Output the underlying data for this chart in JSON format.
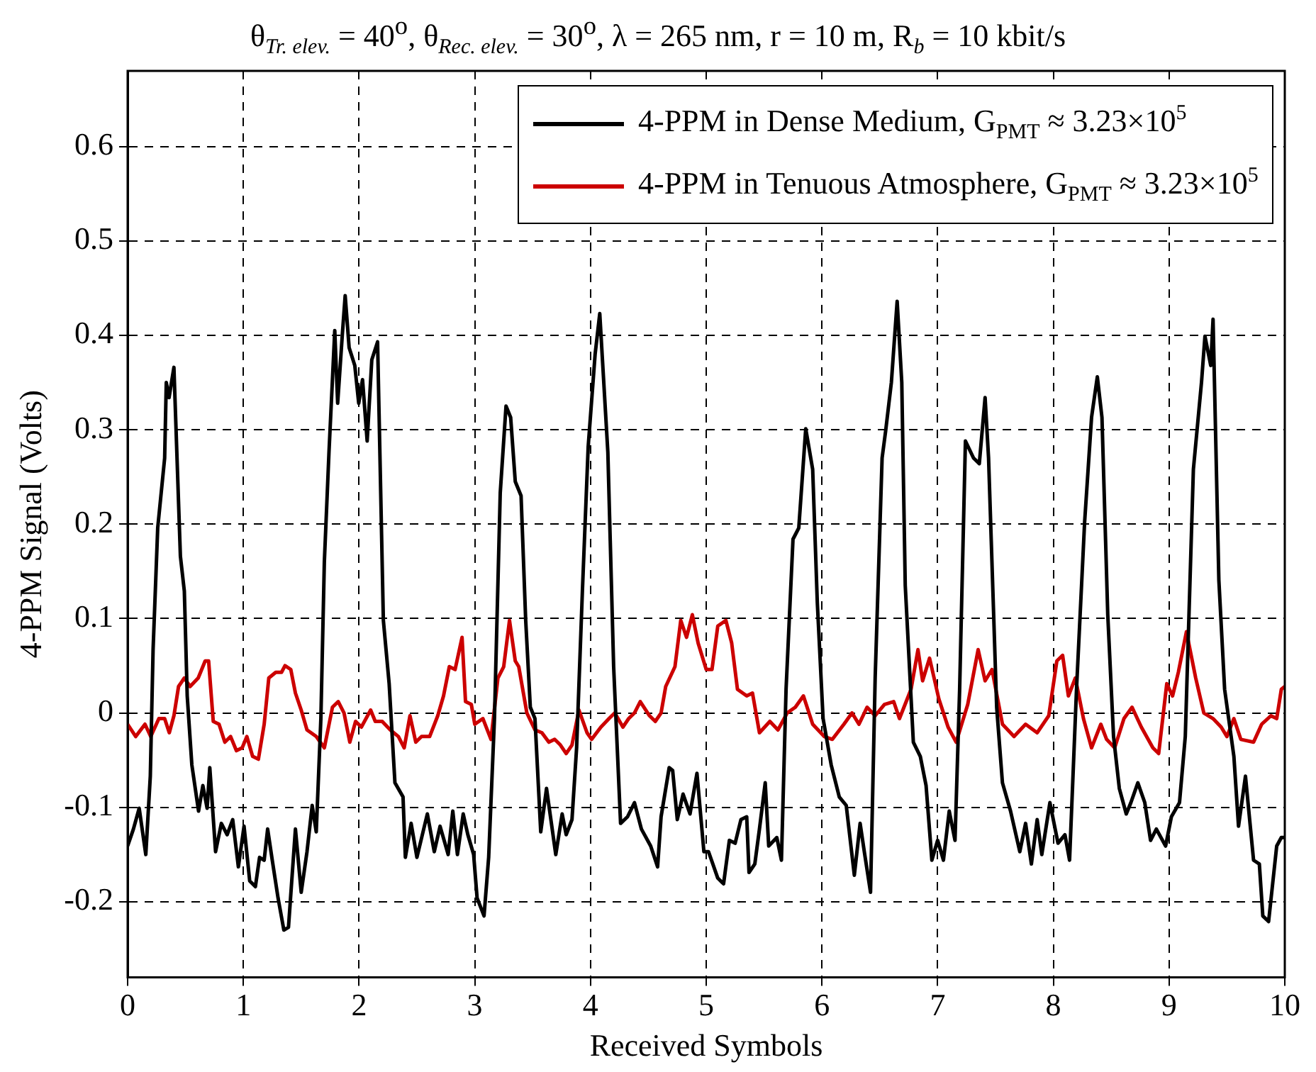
{
  "chart_data": {
    "type": "line",
    "title": "θ$_{Tr. elev.}$ = 40$^{o}$, θ$_{Rec. elev.}$ = 30$^{o}$, λ = 265 nm, r = 10 m, R$_{b}$ = 10 kbit/s",
    "xlabel": "Received Symbols",
    "ylabel": "4-PPM Signal (Volts)",
    "xlim": [
      0,
      10
    ],
    "xticks": [
      0,
      1,
      2,
      3,
      4,
      5,
      6,
      7,
      8,
      9,
      10
    ],
    "ylim": [
      -0.28,
      0.68
    ],
    "yticks": [
      -0.2,
      -0.1,
      0,
      0.1,
      0.2,
      0.3,
      0.4,
      0.5,
      0.6
    ],
    "grid": true,
    "legend": "top right",
    "marker": "none",
    "line_style": "solid",
    "series": [
      {
        "name": "4-PPM in Dense Medium, G$_{PMT}$ ≈ 3.23×10$^{5}$",
        "color": "#000000",
        "x": [
          0,
          0.05,
          0.1,
          0.157,
          0.196,
          0.22,
          0.26,
          0.32,
          0.334,
          0.358,
          0.4,
          0.456,
          0.49,
          0.515,
          0.555,
          0.613,
          0.65,
          0.687,
          0.71,
          0.76,
          0.81,
          0.86,
          0.908,
          0.957,
          1.006,
          1.055,
          1.104,
          1.14,
          1.18,
          1.21,
          1.25,
          1.3,
          1.35,
          1.39,
          1.45,
          1.5,
          1.55,
          1.595,
          1.63,
          1.67,
          1.7,
          1.74,
          1.79,
          1.815,
          1.855,
          1.88,
          1.914,
          1.963,
          1.997,
          2.03,
          2.07,
          2.11,
          2.16,
          2.21,
          2.26,
          2.31,
          2.38,
          2.4,
          2.45,
          2.5,
          2.59,
          2.65,
          2.7,
          2.77,
          2.81,
          2.85,
          2.9,
          2.94,
          2.99,
          3.02,
          3.08,
          3.12,
          3.17,
          3.22,
          3.27,
          3.31,
          3.35,
          3.4,
          3.44,
          3.48,
          3.52,
          3.57,
          3.62,
          3.7,
          3.755,
          3.79,
          3.84,
          3.88,
          3.93,
          3.98,
          4.04,
          4.08,
          4.15,
          4.2,
          4.26,
          4.32,
          4.38,
          4.44,
          4.52,
          4.58,
          4.61,
          4.68,
          4.71,
          4.75,
          4.8,
          4.86,
          4.92,
          4.98,
          5.02,
          5.1,
          5.15,
          5.2,
          5.25,
          5.3,
          5.35,
          5.37,
          5.42,
          5.46,
          5.51,
          5.54,
          5.61,
          5.65,
          5.69,
          5.75,
          5.8,
          5.86,
          5.92,
          5.96,
          6.01,
          6.08,
          6.15,
          6.21,
          6.28,
          6.33,
          6.37,
          6.42,
          6.46,
          6.52,
          6.55,
          6.6,
          6.65,
          6.69,
          6.72,
          6.79,
          6.85,
          6.9,
          6.95,
          7,
          7.05,
          7.1,
          7.15,
          7.19,
          7.24,
          7.31,
          7.36,
          7.41,
          7.44,
          7.51,
          7.56,
          7.63,
          7.71,
          7.76,
          7.81,
          7.86,
          7.9,
          7.97,
          8.04,
          8.1,
          8.14,
          8.2,
          8.27,
          8.33,
          8.38,
          8.42,
          8.47,
          8.52,
          8.57,
          8.63,
          8.67,
          8.73,
          8.79,
          8.84,
          8.89,
          8.97,
          9.02,
          9.09,
          9.14,
          9.21,
          9.28,
          9.31,
          9.36,
          9.38,
          9.43,
          9.48,
          9.56,
          9.6,
          9.66,
          9.73,
          9.78,
          9.81,
          9.86,
          9.93,
          9.97,
          10
        ],
        "values": [
          -0.141,
          -0.123,
          -0.101,
          -0.15,
          -0.067,
          0.067,
          0.196,
          0.27,
          0.35,
          0.334,
          0.366,
          0.166,
          0.129,
          0.018,
          -0.055,
          -0.104,
          -0.077,
          -0.101,
          -0.058,
          -0.147,
          -0.117,
          -0.129,
          -0.113,
          -0.163,
          -0.12,
          -0.178,
          -0.184,
          -0.153,
          -0.156,
          -0.123,
          -0.156,
          -0.196,
          -0.23,
          -0.227,
          -0.123,
          -0.19,
          -0.147,
          -0.098,
          -0.126,
          -0.006,
          0.16,
          0.276,
          0.405,
          0.328,
          0.4,
          0.442,
          0.387,
          0.368,
          0.328,
          0.353,
          0.288,
          0.374,
          0.393,
          0.098,
          0.031,
          -0.074,
          -0.089,
          -0.153,
          -0.117,
          -0.153,
          -0.107,
          -0.147,
          -0.12,
          -0.15,
          -0.104,
          -0.15,
          -0.107,
          -0.129,
          -0.15,
          -0.196,
          -0.215,
          -0.153,
          -0.006,
          0.233,
          0.325,
          0.313,
          0.245,
          0.23,
          0.098,
          0.006,
          -0.006,
          -0.126,
          -0.08,
          -0.15,
          -0.107,
          -0.129,
          -0.113,
          -0.037,
          0.129,
          0.282,
          0.38,
          0.423,
          0.276,
          0.049,
          -0.117,
          -0.11,
          -0.095,
          -0.123,
          -0.141,
          -0.163,
          -0.11,
          -0.058,
          -0.061,
          -0.113,
          -0.086,
          -0.107,
          -0.064,
          -0.147,
          -0.147,
          -0.175,
          -0.181,
          -0.135,
          -0.138,
          -0.113,
          -0.11,
          -0.169,
          -0.16,
          -0.123,
          -0.074,
          -0.141,
          -0.132,
          -0.156,
          0.025,
          0.184,
          0.196,
          0.301,
          0.258,
          0.117,
          -0.006,
          -0.055,
          -0.089,
          -0.098,
          -0.172,
          -0.117,
          -0.15,
          -0.19,
          0.037,
          0.27,
          0.298,
          0.35,
          0.436,
          0.35,
          0.135,
          -0.031,
          -0.046,
          -0.077,
          -0.156,
          -0.135,
          -0.156,
          -0.104,
          -0.135,
          0.025,
          0.288,
          0.27,
          0.264,
          0.334,
          0.27,
          0.006,
          -0.074,
          -0.104,
          -0.147,
          -0.117,
          -0.16,
          -0.113,
          -0.15,
          -0.095,
          -0.138,
          -0.129,
          -0.156,
          0.025,
          0.202,
          0.313,
          0.356,
          0.313,
          0.104,
          -0.025,
          -0.08,
          -0.107,
          -0.095,
          -0.074,
          -0.095,
          -0.135,
          -0.123,
          -0.141,
          -0.11,
          -0.095,
          -0.025,
          0.258,
          0.35,
          0.399,
          0.368,
          0.417,
          0.141,
          0.025,
          -0.046,
          -0.12,
          -0.067,
          -0.156,
          -0.16,
          -0.215,
          -0.221,
          -0.141,
          -0.132,
          -0.132
        ]
      },
      {
        "name": "4-PPM in Tenuous Atmosphere, G$_{PMT}$ ≈ 3.23×10$^{5}$",
        "color": "#cc0000",
        "x": [
          0,
          0.07,
          0.15,
          0.2,
          0.27,
          0.32,
          0.36,
          0.4,
          0.44,
          0.49,
          0.54,
          0.61,
          0.67,
          0.7,
          0.74,
          0.79,
          0.84,
          0.89,
          0.94,
          0.99,
          1.03,
          1.08,
          1.13,
          1.18,
          1.22,
          1.28,
          1.33,
          1.36,
          1.41,
          1.45,
          1.5,
          1.55,
          1.63,
          1.7,
          1.77,
          1.82,
          1.87,
          1.92,
          1.97,
          2.02,
          2.1,
          2.14,
          2.2,
          2.27,
          2.34,
          2.39,
          2.44,
          2.49,
          2.54,
          2.61,
          2.68,
          2.73,
          2.78,
          2.83,
          2.89,
          2.92,
          2.97,
          3,
          3.07,
          3.14,
          3.2,
          3.25,
          3.3,
          3.35,
          3.38,
          3.45,
          3.52,
          3.58,
          3.64,
          3.69,
          3.74,
          3.79,
          3.84,
          3.9,
          3.97,
          4.01,
          4.09,
          4.16,
          4.21,
          4.28,
          4.33,
          4.38,
          4.43,
          4.51,
          4.56,
          4.61,
          4.65,
          4.73,
          4.78,
          4.83,
          4.88,
          4.93,
          5,
          5.05,
          5.1,
          5.17,
          5.22,
          5.27,
          5.35,
          5.4,
          5.46,
          5.55,
          5.62,
          5.7,
          5.77,
          5.84,
          5.92,
          6.02,
          6.09,
          6.19,
          6.26,
          6.32,
          6.39,
          6.46,
          6.54,
          6.62,
          6.67,
          6.77,
          6.83,
          6.87,
          6.93,
          7.01,
          7.09,
          7.16,
          7.26,
          7.35,
          7.41,
          7.47,
          7.56,
          7.66,
          7.76,
          7.86,
          7.96,
          8.03,
          8.08,
          8.13,
          8.19,
          8.26,
          8.33,
          8.41,
          8.46,
          8.53,
          8.61,
          8.68,
          8.76,
          8.86,
          8.91,
          8.98,
          9.03,
          9.08,
          9.15,
          9.23,
          9.3,
          9.38,
          9.45,
          9.5,
          9.56,
          9.62,
          9.73,
          9.8,
          9.88,
          9.93,
          9.97,
          10
        ],
        "values": [
          -0.012,
          -0.025,
          -0.012,
          -0.025,
          -0.006,
          -0.006,
          -0.021,
          -0.003,
          0.028,
          0.037,
          0.028,
          0.037,
          0.055,
          0.055,
          -0.009,
          -0.012,
          -0.031,
          -0.025,
          -0.04,
          -0.037,
          -0.025,
          -0.046,
          -0.049,
          -0.012,
          0.037,
          0.043,
          0.043,
          0.05,
          0.046,
          0.021,
          0.003,
          -0.018,
          -0.025,
          -0.037,
          0.006,
          0.012,
          0,
          -0.031,
          -0.009,
          -0.015,
          0.003,
          -0.009,
          -0.009,
          -0.018,
          -0.025,
          -0.037,
          -0.003,
          -0.031,
          -0.025,
          -0.025,
          -0.003,
          0.018,
          0.049,
          0.046,
          0.08,
          0.012,
          0.009,
          -0.012,
          -0.006,
          -0.028,
          0.037,
          0.049,
          0.098,
          0.055,
          0.049,
          0,
          -0.018,
          -0.021,
          -0.031,
          -0.028,
          -0.034,
          -0.043,
          -0.034,
          0.003,
          -0.021,
          -0.028,
          -0.015,
          -0.006,
          0,
          -0.015,
          -0.006,
          0,
          0.012,
          -0.003,
          -0.009,
          0,
          0.028,
          0.049,
          0.098,
          0.08,
          0.104,
          0.074,
          0.046,
          0.046,
          0.092,
          0.098,
          0.074,
          0.025,
          0.018,
          0.021,
          -0.021,
          -0.009,
          -0.018,
          0,
          0.006,
          0.018,
          -0.012,
          -0.025,
          -0.028,
          -0.012,
          0,
          -0.012,
          0.006,
          -0.003,
          0.009,
          0.012,
          -0.006,
          0.025,
          0.067,
          0.034,
          0.058,
          0.015,
          -0.015,
          -0.031,
          0.009,
          0.067,
          0.034,
          0.046,
          -0.012,
          -0.025,
          -0.012,
          -0.021,
          -0.003,
          0.055,
          0.061,
          0.018,
          0.037,
          -0.006,
          -0.037,
          -0.012,
          -0.028,
          -0.037,
          -0.006,
          0.006,
          -0.015,
          -0.037,
          -0.043,
          0.031,
          0.018,
          0.043,
          0.086,
          0.037,
          0,
          -0.006,
          -0.015,
          -0.025,
          -0.006,
          -0.028,
          -0.031,
          -0.012,
          -0.003,
          -0.006,
          0.025,
          0.028
        ]
      }
    ]
  }
}
